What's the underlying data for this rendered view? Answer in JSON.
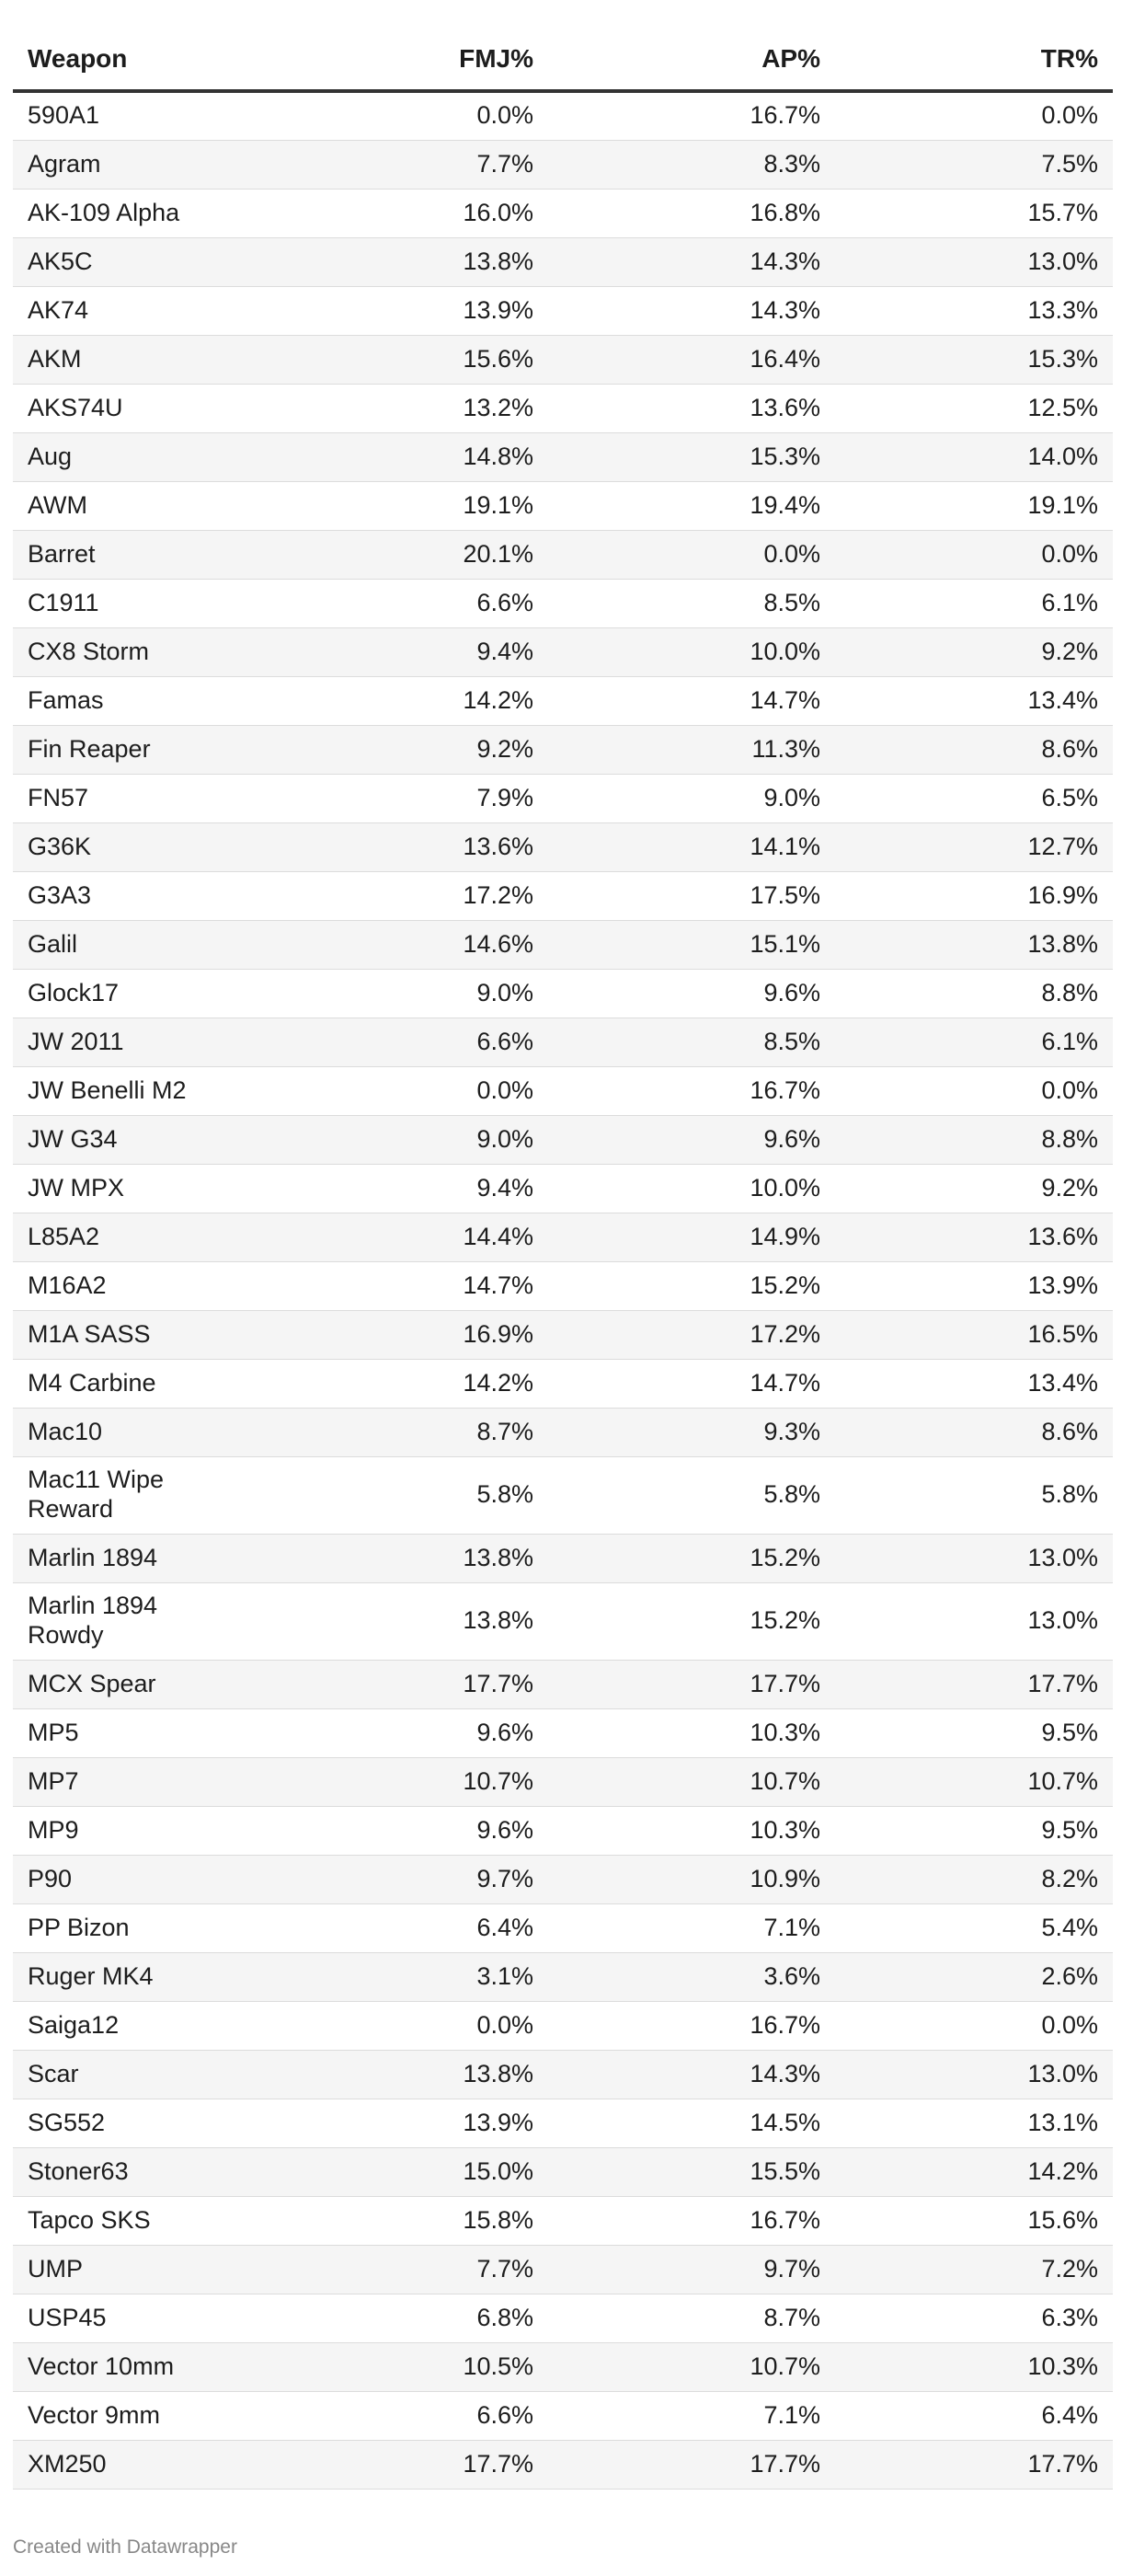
{
  "table": {
    "columns": [
      "Weapon",
      "FMJ%",
      "AP%",
      "TR%"
    ],
    "rows": [
      [
        "590A1",
        "0.0%",
        "16.7%",
        "0.0%"
      ],
      [
        "Agram",
        "7.7%",
        "8.3%",
        "7.5%"
      ],
      [
        "AK-109 Alpha",
        "16.0%",
        "16.8%",
        "15.7%"
      ],
      [
        "AK5C",
        "13.8%",
        "14.3%",
        "13.0%"
      ],
      [
        "AK74",
        "13.9%",
        "14.3%",
        "13.3%"
      ],
      [
        "AKM",
        "15.6%",
        "16.4%",
        "15.3%"
      ],
      [
        "AKS74U",
        "13.2%",
        "13.6%",
        "12.5%"
      ],
      [
        "Aug",
        "14.8%",
        "15.3%",
        "14.0%"
      ],
      [
        "AWM",
        "19.1%",
        "19.4%",
        "19.1%"
      ],
      [
        "Barret",
        "20.1%",
        "0.0%",
        "0.0%"
      ],
      [
        "C1911",
        "6.6%",
        "8.5%",
        "6.1%"
      ],
      [
        "CX8 Storm",
        "9.4%",
        "10.0%",
        "9.2%"
      ],
      [
        "Famas",
        "14.2%",
        "14.7%",
        "13.4%"
      ],
      [
        "Fin Reaper",
        "9.2%",
        "11.3%",
        "8.6%"
      ],
      [
        "FN57",
        "7.9%",
        "9.0%",
        "6.5%"
      ],
      [
        "G36K",
        "13.6%",
        "14.1%",
        "12.7%"
      ],
      [
        "G3A3",
        "17.2%",
        "17.5%",
        "16.9%"
      ],
      [
        "Galil",
        "14.6%",
        "15.1%",
        "13.8%"
      ],
      [
        "Glock17",
        "9.0%",
        "9.6%",
        "8.8%"
      ],
      [
        "JW 2011",
        "6.6%",
        "8.5%",
        "6.1%"
      ],
      [
        "JW Benelli M2",
        "0.0%",
        "16.7%",
        "0.0%"
      ],
      [
        "JW G34",
        "9.0%",
        "9.6%",
        "8.8%"
      ],
      [
        "JW MPX",
        "9.4%",
        "10.0%",
        "9.2%"
      ],
      [
        "L85A2",
        "14.4%",
        "14.9%",
        "13.6%"
      ],
      [
        "M16A2",
        "14.7%",
        "15.2%",
        "13.9%"
      ],
      [
        "M1A SASS",
        "16.9%",
        "17.2%",
        "16.5%"
      ],
      [
        "M4 Carbine",
        "14.2%",
        "14.7%",
        "13.4%"
      ],
      [
        "Mac10",
        "8.7%",
        "9.3%",
        "8.6%"
      ],
      [
        "Mac11 Wipe Reward",
        "5.8%",
        "5.8%",
        "5.8%"
      ],
      [
        "Marlin 1894",
        "13.8%",
        "15.2%",
        "13.0%"
      ],
      [
        "Marlin 1894 Rowdy",
        "13.8%",
        "15.2%",
        "13.0%"
      ],
      [
        "MCX Spear",
        "17.7%",
        "17.7%",
        "17.7%"
      ],
      [
        "MP5",
        "9.6%",
        "10.3%",
        "9.5%"
      ],
      [
        "MP7",
        "10.7%",
        "10.7%",
        "10.7%"
      ],
      [
        "MP9",
        "9.6%",
        "10.3%",
        "9.5%"
      ],
      [
        "P90",
        "9.7%",
        "10.9%",
        "8.2%"
      ],
      [
        "PP Bizon",
        "6.4%",
        "7.1%",
        "5.4%"
      ],
      [
        "Ruger MK4",
        "3.1%",
        "3.6%",
        "2.6%"
      ],
      [
        "Saiga12",
        "0.0%",
        "16.7%",
        "0.0%"
      ],
      [
        "Scar",
        "13.8%",
        "14.3%",
        "13.0%"
      ],
      [
        "SG552",
        "13.9%",
        "14.5%",
        "13.1%"
      ],
      [
        "Stoner63",
        "15.0%",
        "15.5%",
        "14.2%"
      ],
      [
        "Tapco SKS",
        "15.8%",
        "16.7%",
        "15.6%"
      ],
      [
        "UMP",
        "7.7%",
        "9.7%",
        "7.2%"
      ],
      [
        "USP45",
        "6.8%",
        "8.7%",
        "6.3%"
      ],
      [
        "Vector 10mm",
        "10.5%",
        "10.7%",
        "10.3%"
      ],
      [
        "Vector 9mm",
        "6.6%",
        "7.1%",
        "6.4%"
      ],
      [
        "XM250",
        "17.7%",
        "17.7%",
        "17.7%"
      ]
    ]
  },
  "footer": {
    "credit": "Created with Datawrapper"
  }
}
